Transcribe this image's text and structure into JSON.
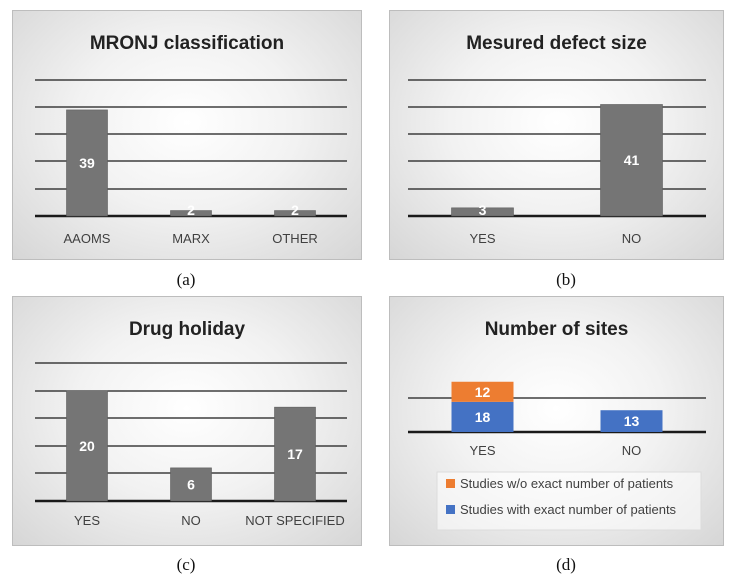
{
  "colors": {
    "bar": "#757575",
    "gridline": "#1a1a1a",
    "orange": "#ed7d31",
    "blue": "#4472c4",
    "label": "#ffffff",
    "title": "#222222",
    "axis_text": "#404040"
  },
  "chart_data": [
    {
      "id": "a",
      "type": "bar",
      "title": "MRONJ classification",
      "caption": "(a)",
      "categories": [
        "AAOMS",
        "MARX",
        "OTHER"
      ],
      "values": [
        39,
        2,
        2
      ],
      "data_labels": [
        "39",
        "2",
        "2"
      ],
      "ylim": [
        0,
        50
      ],
      "grid": true,
      "ytick_labels": false
    },
    {
      "id": "b",
      "type": "bar",
      "title": "Mesured defect size",
      "caption": "(b)",
      "categories": [
        "YES",
        "NO"
      ],
      "values": [
        3,
        41
      ],
      "data_labels": [
        "3",
        "41"
      ],
      "ylim": [
        0,
        50
      ],
      "grid": true,
      "ytick_labels": false
    },
    {
      "id": "c",
      "type": "bar",
      "title": "Drug holiday",
      "caption": "(c)",
      "categories": [
        "YES",
        "NO",
        "NOT SPECIFIED"
      ],
      "values": [
        20,
        6,
        17
      ],
      "data_labels": [
        "20",
        "6",
        "17"
      ],
      "ylim": [
        0,
        25
      ],
      "grid": true,
      "ytick_labels": false
    },
    {
      "id": "d",
      "type": "bar",
      "stacked": true,
      "title": "Number of sites",
      "caption": "(d)",
      "categories": [
        "YES",
        "NO"
      ],
      "series": [
        {
          "name": "Studies with exact number of patients",
          "values": [
            18,
            13
          ],
          "data_labels": [
            "18",
            "13"
          ],
          "color": "#4472c4"
        },
        {
          "name": "Studies w/o exact number of patients",
          "values": [
            12,
            0
          ],
          "data_labels": [
            "12",
            ""
          ],
          "color": "#ed7d31"
        }
      ],
      "ylim": [
        0,
        40
      ],
      "grid": true,
      "ytick_labels": false,
      "legend_position": "bottom"
    }
  ]
}
